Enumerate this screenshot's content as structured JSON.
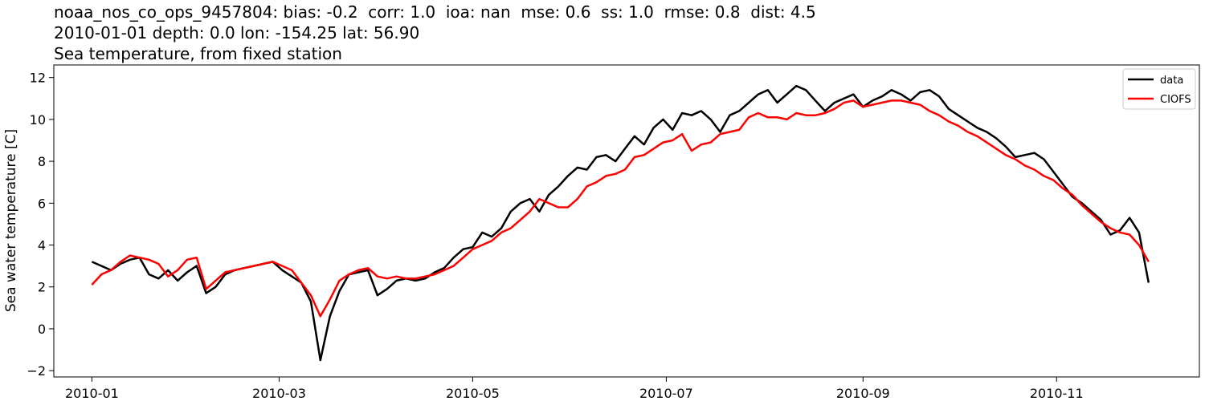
{
  "title": {
    "line1": "noaa_nos_co_ops_9457804: bias: -0.2  corr: 1.0  ioa: nan  mse: 0.6  ss: 1.0  rmse: 0.8  dist: 4.5",
    "line2": "2010-01-01 depth: 0.0 lon: -154.25 lat: 56.90",
    "line3": "Sea temperature, from fixed station"
  },
  "chart_data": {
    "type": "line",
    "title": "noaa_nos_co_ops_9457804: bias: -0.2  corr: 1.0  ioa: nan  mse: 0.6  ss: 1.0  rmse: 0.8  dist: 4.5 / 2010-01-01 depth: 0.0 lon: -154.25 lat: 56.90 / Sea temperature, from fixed station",
    "xlabel": "",
    "ylabel": "Sea water temperature [C]",
    "x_type": "date",
    "xlim": [
      "2009-12-20",
      "2010-12-16"
    ],
    "ylim": [
      -2.3,
      12.6
    ],
    "xticks": [
      "2010-01",
      "2010-03",
      "2010-05",
      "2010-07",
      "2010-09",
      "2010-11"
    ],
    "xtick_dates": [
      "2010-01-01",
      "2010-03-01",
      "2010-05-01",
      "2010-07-01",
      "2010-09-01",
      "2010-11-01"
    ],
    "yticks": [
      -2,
      0,
      2,
      4,
      6,
      8,
      10,
      12
    ],
    "grid": false,
    "legend_position": "top-right",
    "series": [
      {
        "name": "data",
        "color": "#000000",
        "x": [
          "2010-01-01",
          "2010-01-04",
          "2010-01-07",
          "2010-01-10",
          "2010-01-13",
          "2010-01-16",
          "2010-01-19",
          "2010-01-22",
          "2010-01-25",
          "2010-01-28",
          "2010-01-31",
          "2010-02-03",
          "2010-02-06",
          "2010-02-09",
          "2010-02-12",
          "2010-02-15",
          "2010-02-18",
          "2010-02-21",
          "2010-02-24",
          "2010-02-27",
          "2010-03-02",
          "2010-03-05",
          "2010-03-08",
          "2010-03-11",
          "2010-03-14",
          "2010-03-17",
          "2010-03-20",
          "2010-03-23",
          "2010-03-26",
          "2010-03-29",
          "2010-04-01",
          "2010-04-04",
          "2010-04-07",
          "2010-04-10",
          "2010-04-13",
          "2010-04-16",
          "2010-04-19",
          "2010-04-22",
          "2010-04-25",
          "2010-04-28",
          "2010-05-01",
          "2010-05-04",
          "2010-05-07",
          "2010-05-10",
          "2010-05-13",
          "2010-05-16",
          "2010-05-19",
          "2010-05-22",
          "2010-05-25",
          "2010-05-28",
          "2010-05-31",
          "2010-06-03",
          "2010-06-06",
          "2010-06-09",
          "2010-06-12",
          "2010-06-15",
          "2010-06-18",
          "2010-06-21",
          "2010-06-24",
          "2010-06-27",
          "2010-06-30",
          "2010-07-03",
          "2010-07-06",
          "2010-07-09",
          "2010-07-12",
          "2010-07-15",
          "2010-07-18",
          "2010-07-21",
          "2010-07-24",
          "2010-07-27",
          "2010-07-30",
          "2010-08-02",
          "2010-08-05",
          "2010-08-08",
          "2010-08-11",
          "2010-08-14",
          "2010-08-17",
          "2010-08-20",
          "2010-08-23",
          "2010-08-26",
          "2010-08-29",
          "2010-09-01",
          "2010-09-04",
          "2010-09-07",
          "2010-09-10",
          "2010-09-13",
          "2010-09-16",
          "2010-09-19",
          "2010-09-22",
          "2010-09-25",
          "2010-09-28",
          "2010-10-01",
          "2010-10-04",
          "2010-10-07",
          "2010-10-10",
          "2010-10-13",
          "2010-10-16",
          "2010-10-19",
          "2010-10-22",
          "2010-10-25",
          "2010-10-28",
          "2010-10-31",
          "2010-11-03",
          "2010-11-06",
          "2010-11-09",
          "2010-11-12",
          "2010-11-15",
          "2010-11-18",
          "2010-11-21",
          "2010-11-24",
          "2010-11-27",
          "2010-11-30"
        ],
        "y": [
          3.2,
          3.0,
          2.8,
          3.1,
          3.3,
          3.4,
          2.6,
          2.4,
          2.8,
          2.3,
          2.7,
          3.0,
          1.7,
          2.0,
          2.6,
          2.8,
          2.9,
          3.0,
          3.1,
          3.2,
          2.8,
          2.5,
          2.2,
          1.3,
          -1.5,
          0.6,
          1.8,
          2.6,
          2.7,
          2.8,
          1.6,
          1.9,
          2.3,
          2.4,
          2.3,
          2.4,
          2.7,
          2.9,
          3.4,
          3.8,
          3.9,
          4.6,
          4.4,
          4.8,
          5.6,
          6.0,
          6.2,
          5.6,
          6.4,
          6.8,
          7.3,
          7.7,
          7.6,
          8.2,
          8.3,
          8.0,
          8.6,
          9.2,
          8.8,
          9.6,
          10.0,
          9.5,
          10.3,
          10.2,
          10.4,
          10.0,
          9.4,
          10.2,
          10.4,
          10.8,
          11.2,
          11.4,
          10.8,
          11.2,
          11.6,
          11.4,
          10.9,
          10.4,
          10.8,
          11.0,
          11.2,
          10.6,
          10.9,
          11.1,
          11.4,
          11.2,
          10.9,
          11.3,
          11.4,
          11.1,
          10.5,
          10.2,
          9.9,
          9.6,
          9.4,
          9.1,
          8.7,
          8.2,
          8.3,
          8.4,
          8.1,
          7.5,
          6.9,
          6.3,
          6.0,
          5.6,
          5.2,
          4.5,
          4.7,
          5.3,
          4.6,
          2.2
        ]
      },
      {
        "name": "CIOFS",
        "color": "#ff0000",
        "x": [
          "2010-01-01",
          "2010-01-04",
          "2010-01-07",
          "2010-01-10",
          "2010-01-13",
          "2010-01-16",
          "2010-01-19",
          "2010-01-22",
          "2010-01-25",
          "2010-01-28",
          "2010-01-31",
          "2010-02-03",
          "2010-02-06",
          "2010-02-09",
          "2010-02-12",
          "2010-02-15",
          "2010-02-18",
          "2010-02-21",
          "2010-02-24",
          "2010-02-27",
          "2010-03-02",
          "2010-03-05",
          "2010-03-08",
          "2010-03-11",
          "2010-03-14",
          "2010-03-17",
          "2010-03-20",
          "2010-03-23",
          "2010-03-26",
          "2010-03-29",
          "2010-04-01",
          "2010-04-04",
          "2010-04-07",
          "2010-04-10",
          "2010-04-13",
          "2010-04-16",
          "2010-04-19",
          "2010-04-22",
          "2010-04-25",
          "2010-04-28",
          "2010-05-01",
          "2010-05-04",
          "2010-05-07",
          "2010-05-10",
          "2010-05-13",
          "2010-05-16",
          "2010-05-19",
          "2010-05-22",
          "2010-05-25",
          "2010-05-28",
          "2010-05-31",
          "2010-06-03",
          "2010-06-06",
          "2010-06-09",
          "2010-06-12",
          "2010-06-15",
          "2010-06-18",
          "2010-06-21",
          "2010-06-24",
          "2010-06-27",
          "2010-06-30",
          "2010-07-03",
          "2010-07-06",
          "2010-07-09",
          "2010-07-12",
          "2010-07-15",
          "2010-07-18",
          "2010-07-21",
          "2010-07-24",
          "2010-07-27",
          "2010-07-30",
          "2010-08-02",
          "2010-08-05",
          "2010-08-08",
          "2010-08-11",
          "2010-08-14",
          "2010-08-17",
          "2010-08-20",
          "2010-08-23",
          "2010-08-26",
          "2010-08-29",
          "2010-09-01",
          "2010-09-04",
          "2010-09-07",
          "2010-09-10",
          "2010-09-13",
          "2010-09-16",
          "2010-09-19",
          "2010-09-22",
          "2010-09-25",
          "2010-09-28",
          "2010-10-01",
          "2010-10-04",
          "2010-10-07",
          "2010-10-10",
          "2010-10-13",
          "2010-10-16",
          "2010-10-19",
          "2010-10-22",
          "2010-10-25",
          "2010-10-28",
          "2010-10-31",
          "2010-11-03",
          "2010-11-06",
          "2010-11-09",
          "2010-11-12",
          "2010-11-15",
          "2010-11-18",
          "2010-11-21",
          "2010-11-24",
          "2010-11-27",
          "2010-11-30"
        ],
        "y": [
          2.1,
          2.6,
          2.8,
          3.2,
          3.5,
          3.4,
          3.3,
          3.1,
          2.5,
          2.8,
          3.3,
          3.4,
          1.9,
          2.3,
          2.7,
          2.8,
          2.9,
          3.0,
          3.1,
          3.2,
          3.0,
          2.8,
          2.2,
          1.6,
          0.6,
          1.4,
          2.3,
          2.6,
          2.8,
          2.9,
          2.5,
          2.4,
          2.5,
          2.4,
          2.4,
          2.5,
          2.6,
          2.8,
          3.0,
          3.4,
          3.8,
          4.0,
          4.2,
          4.6,
          4.8,
          5.2,
          5.6,
          6.2,
          6.0,
          5.8,
          5.8,
          6.2,
          6.8,
          7.0,
          7.3,
          7.4,
          7.6,
          8.2,
          8.3,
          8.6,
          8.9,
          9.0,
          9.3,
          8.5,
          8.8,
          8.9,
          9.3,
          9.4,
          9.5,
          10.1,
          10.3,
          10.1,
          10.1,
          10.0,
          10.3,
          10.2,
          10.2,
          10.3,
          10.5,
          10.8,
          10.9,
          10.6,
          10.7,
          10.8,
          10.9,
          10.9,
          10.8,
          10.7,
          10.4,
          10.2,
          9.9,
          9.7,
          9.4,
          9.2,
          8.9,
          8.6,
          8.3,
          8.1,
          7.8,
          7.6,
          7.3,
          7.1,
          6.7,
          6.4,
          5.9,
          5.5,
          5.1,
          4.8,
          4.6,
          4.5,
          4.0,
          3.2
        ]
      }
    ]
  }
}
